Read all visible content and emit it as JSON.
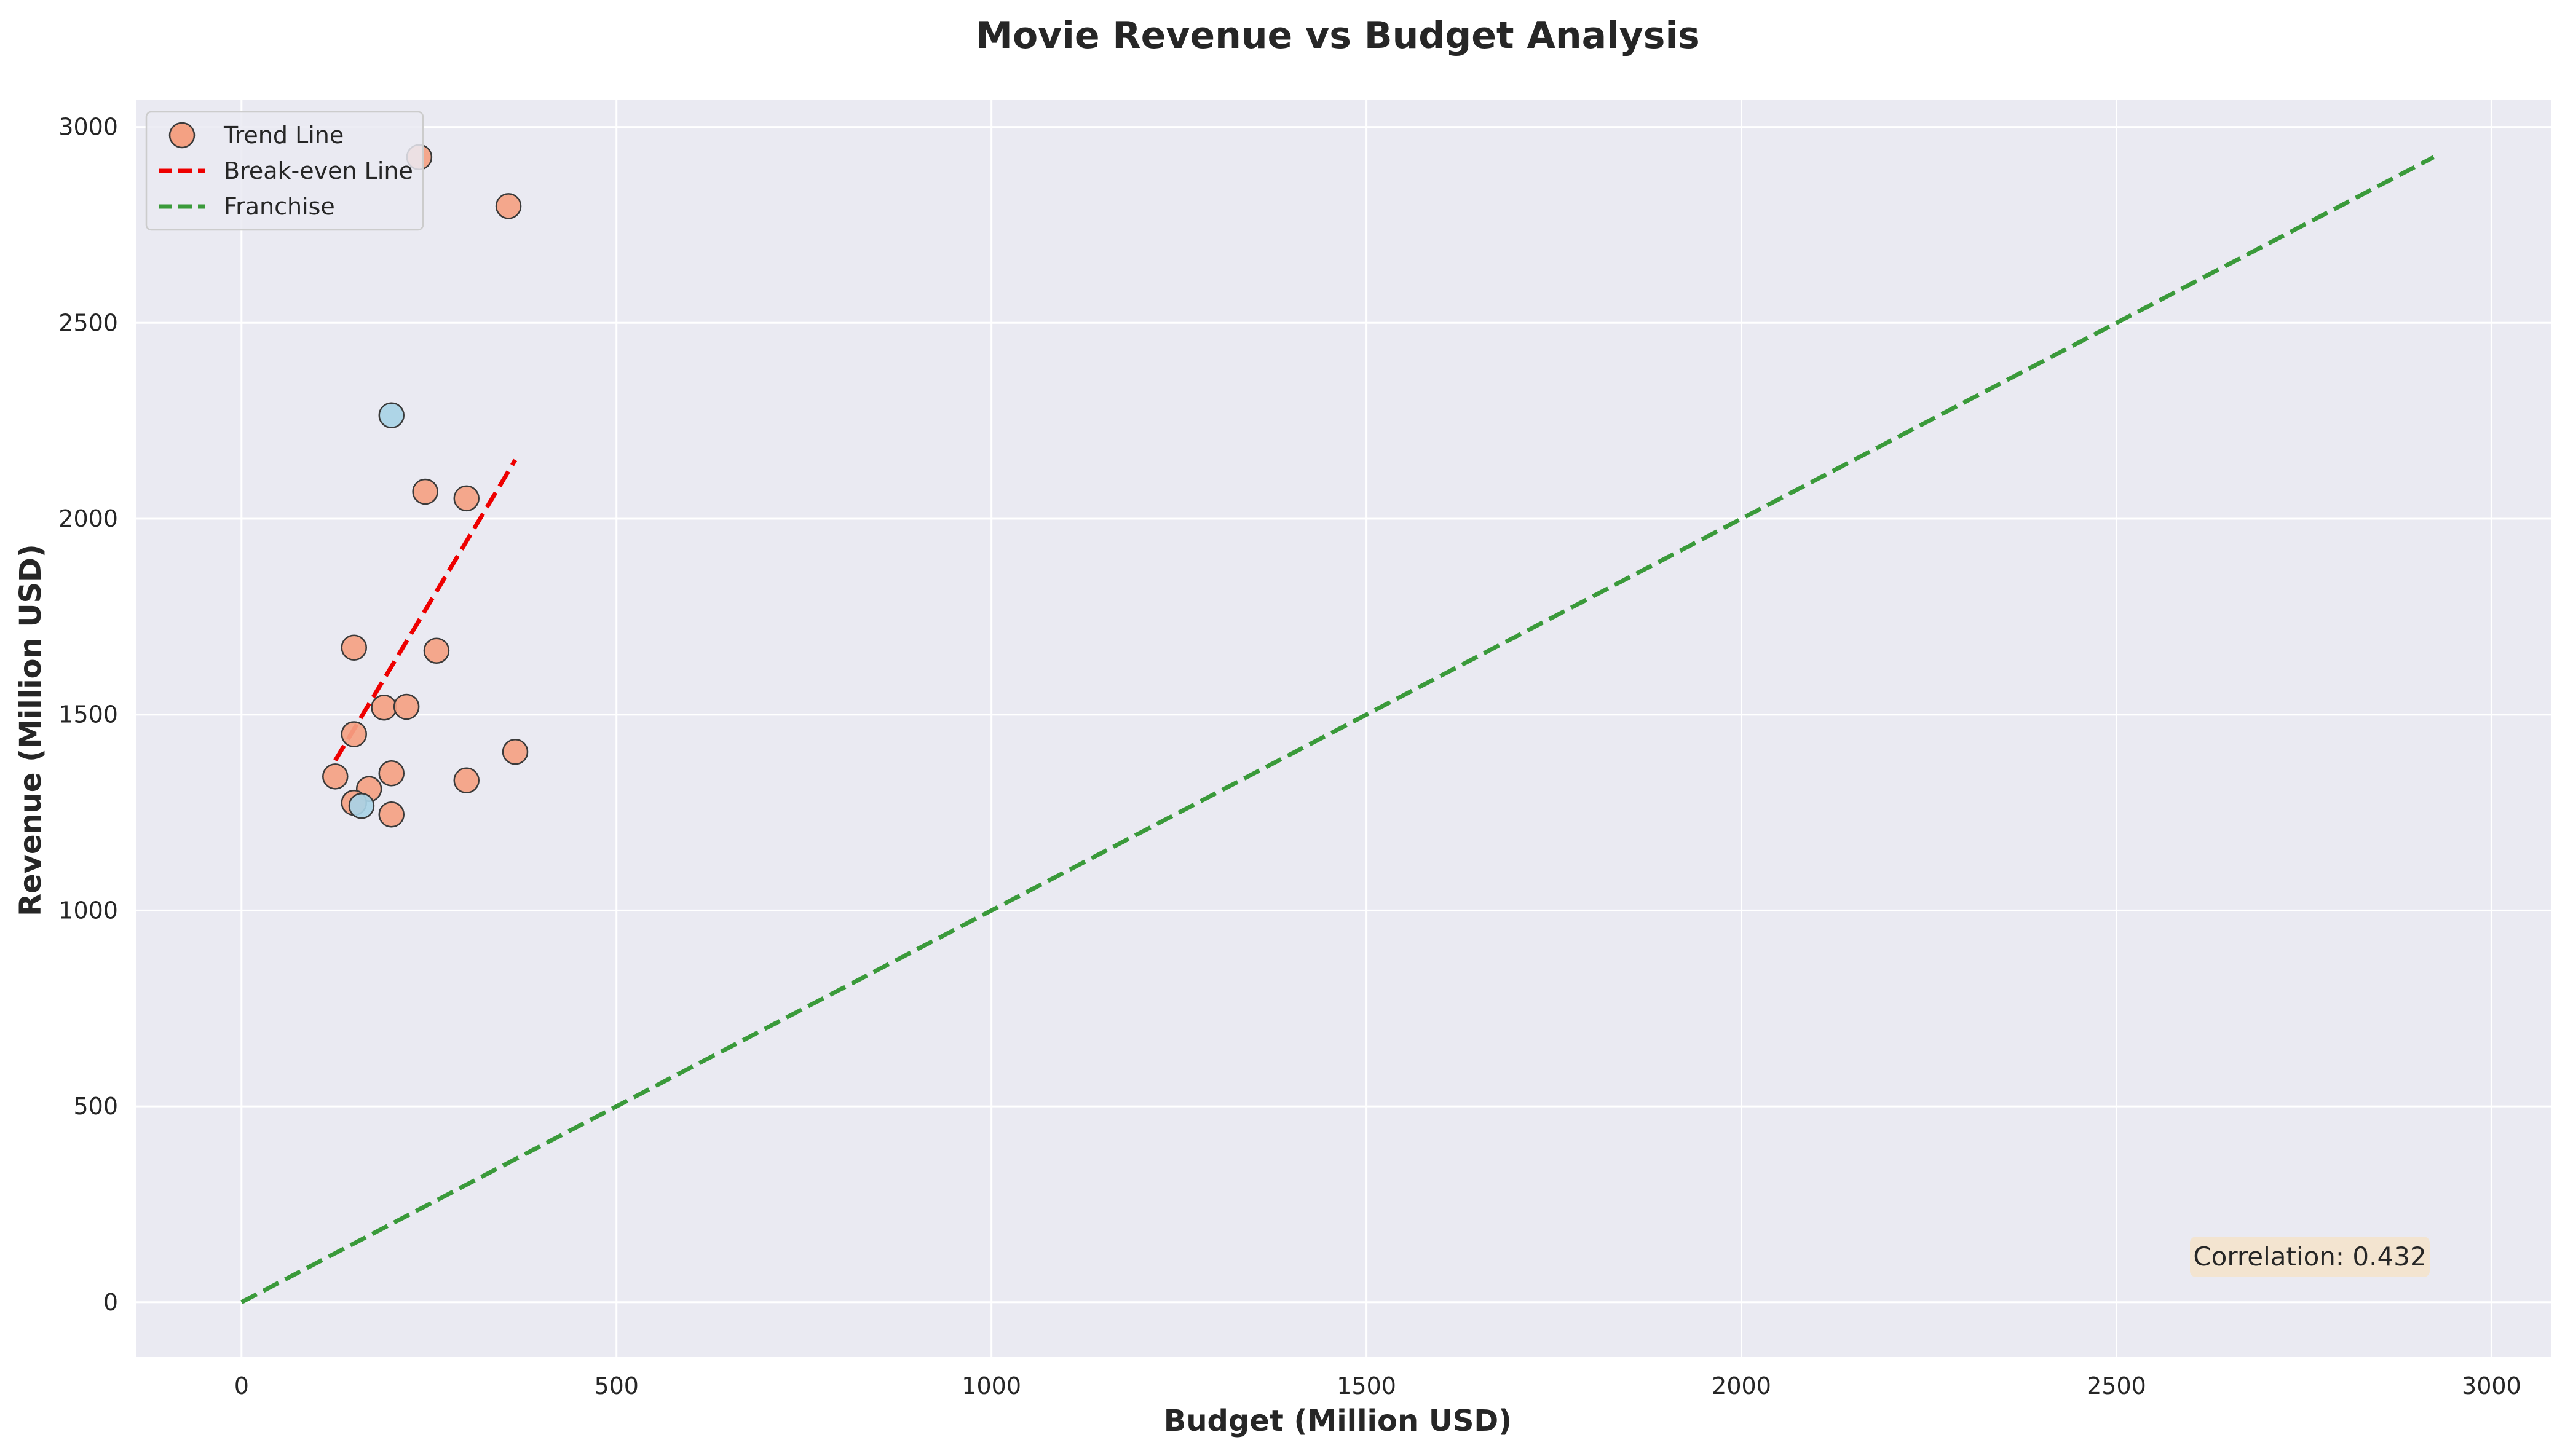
{
  "chart_data": {
    "type": "scatter",
    "title": "Movie Revenue vs Budget Analysis",
    "xlabel": "Budget (Million USD)",
    "ylabel": "Revenue (Million USD)",
    "xlim": [
      -140,
      3080
    ],
    "ylim": [
      -140,
      3070
    ],
    "xticks": [
      0,
      500,
      1000,
      1500,
      2000,
      2500,
      3000
    ],
    "yticks": [
      0,
      500,
      1000,
      1500,
      2000,
      2500,
      3000
    ],
    "grid": true,
    "legend_position": "top-left",
    "series": [
      {
        "name": "Trend Line",
        "kind": "scatter",
        "color": "#f4a183",
        "points": [
          {
            "x": 237,
            "y": 2923
          },
          {
            "x": 356,
            "y": 2798
          },
          {
            "x": 245,
            "y": 2069
          },
          {
            "x": 300,
            "y": 2052
          },
          {
            "x": 150,
            "y": 1671
          },
          {
            "x": 260,
            "y": 1663
          },
          {
            "x": 190,
            "y": 1518
          },
          {
            "x": 220,
            "y": 1520
          },
          {
            "x": 150,
            "y": 1450
          },
          {
            "x": 365,
            "y": 1405
          },
          {
            "x": 125,
            "y": 1342
          },
          {
            "x": 200,
            "y": 1350
          },
          {
            "x": 300,
            "y": 1332
          },
          {
            "x": 170,
            "y": 1310
          },
          {
            "x": 150,
            "y": 1275
          },
          {
            "x": 200,
            "y": 1245
          }
        ]
      },
      {
        "kind": "scatter",
        "color": "#a8d3e6",
        "points": [
          {
            "x": 200,
            "y": 2264
          },
          {
            "x": 160,
            "y": 1267
          }
        ]
      },
      {
        "name": "Break-even Line",
        "kind": "line",
        "color": "#ee0000",
        "dash": true,
        "points": [
          {
            "x": 125,
            "y": 1383
          },
          {
            "x": 365,
            "y": 2150
          }
        ]
      },
      {
        "name": "Franchise",
        "kind": "line",
        "color": "#3a9a3a",
        "dash": true,
        "points": [
          {
            "x": 0,
            "y": 0
          },
          {
            "x": 2923,
            "y": 2923
          }
        ]
      }
    ],
    "annotation": {
      "text": "Correlation: 0.432",
      "position": "bottom-right"
    },
    "colors": {
      "plot_background": "#eaeaf2",
      "grid": "#ffffff",
      "text": "#262626",
      "annotation_box": "#f4e3cc",
      "marker_edge": "#3a3a3a"
    }
  }
}
